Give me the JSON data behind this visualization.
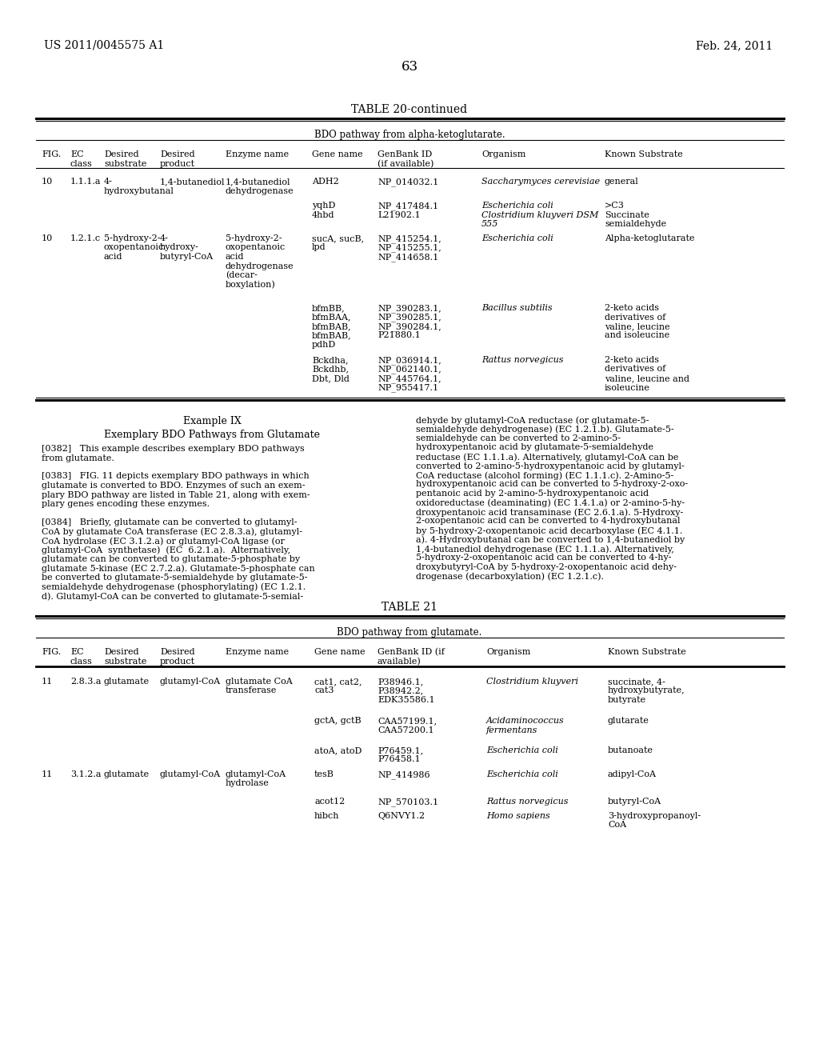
{
  "page_header_left": "US 2011/0045575 A1",
  "page_header_right": "Feb. 24, 2011",
  "page_number": "63",
  "table1_title": "TABLE 20-continued",
  "table1_subtitle": "BDO pathway from alpha-ketoglutarate.",
  "table2_title": "TABLE 21",
  "table2_subtitle": "BDO pathway from glutamate.",
  "bg_color": "#ffffff"
}
